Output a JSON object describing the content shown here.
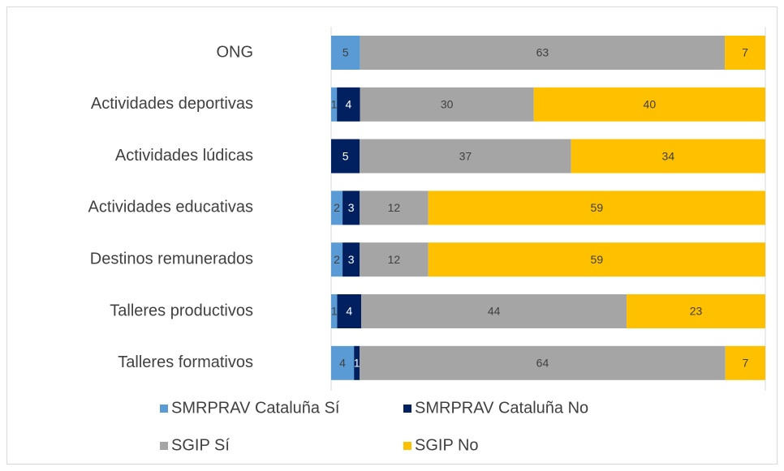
{
  "chart_data": {
    "type": "bar",
    "orientation": "horizontal",
    "stacking": "percent",
    "categories": [
      "ONG",
      "Actividades deportivas",
      "Actividades lúdicas",
      "Actividades educativas",
      "Destinos remunerados",
      "Talleres productivos",
      "Talleres formativos"
    ],
    "series": [
      {
        "name": "SMRPRAV Cataluña Sí",
        "color": "#5b9bd5",
        "values": [
          5,
          1,
          null,
          2,
          2,
          1,
          4
        ]
      },
      {
        "name": "SMRPRAV Cataluña No",
        "color": "#002060",
        "values": [
          null,
          4,
          5,
          3,
          3,
          4,
          1
        ]
      },
      {
        "name": "SGIP Sí",
        "color": "#a5a5a5",
        "values": [
          63,
          30,
          37,
          12,
          12,
          44,
          64
        ]
      },
      {
        "name": "SGIP No",
        "color": "#ffc000",
        "values": [
          7,
          40,
          34,
          59,
          59,
          23,
          7
        ]
      }
    ],
    "legend": "bottom"
  }
}
